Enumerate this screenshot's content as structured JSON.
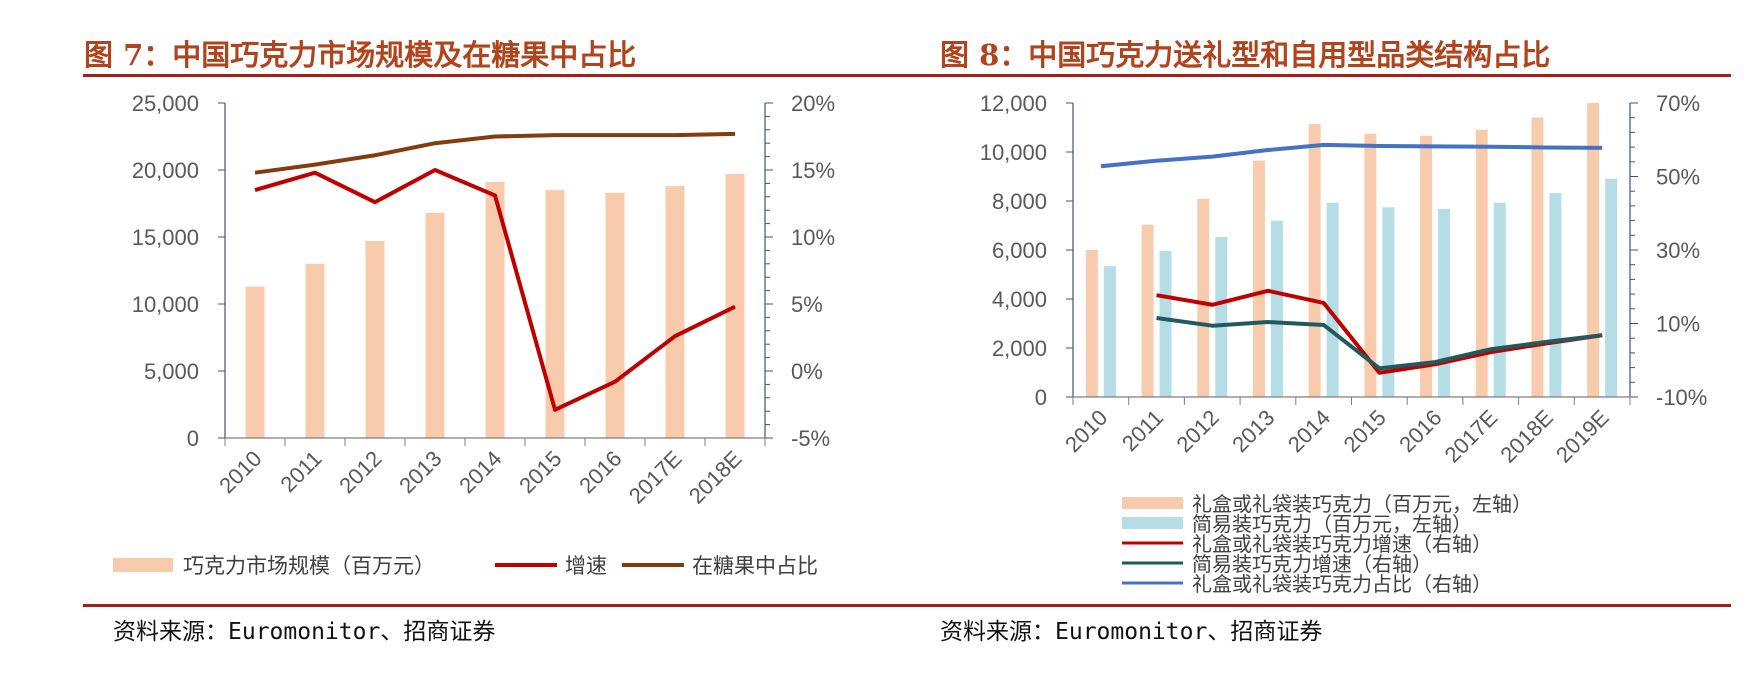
{
  "figures": [
    {
      "title": "图 7：中国巧克力市场规模及在糖果中占比",
      "source": "资料来源：Euromonitor、招商证券"
    },
    {
      "title": "图 8：中国巧克力送礼型和自用型品类结构占比",
      "source": "资料来源：Euromonitor、招商证券"
    }
  ],
  "colors": {
    "title": "#B0441C",
    "rule": "#A0201C",
    "bar_gift": "#F8CBAD",
    "bar_simple": "#B4DDE6",
    "red": "#C00000",
    "brown": "#843C0C",
    "teal": "#215A5E",
    "blue": "#4472C4"
  },
  "chart_data": [
    {
      "type": "bar",
      "categories": [
        "2010",
        "2011",
        "2012",
        "2013",
        "2014",
        "2015",
        "2016",
        "2017E",
        "2018E"
      ],
      "ylim": [
        0,
        25000
      ],
      "y_ticks": [
        "0",
        "5,000",
        "10,000",
        "15,000",
        "20,000",
        "25,000"
      ],
      "y2lim": [
        -5,
        20
      ],
      "y2_ticks": [
        "-5%",
        "0%",
        "5%",
        "10%",
        "15%",
        "20%"
      ],
      "legend_position": "bottom",
      "series": [
        {
          "name": "巧克力市场规模（百万元）",
          "type": "bar",
          "axis": "left",
          "color": "#F8CBAD",
          "values": [
            11300,
            13000,
            14700,
            16800,
            19100,
            18500,
            18300,
            18800,
            19700
          ]
        },
        {
          "name": "增速",
          "type": "line",
          "axis": "right",
          "color": "#C00000",
          "values": [
            13.5,
            14.8,
            12.6,
            15.0,
            13.1,
            -2.9,
            -0.8,
            2.6,
            4.8
          ]
        },
        {
          "name": "在糖果中占比",
          "type": "line",
          "axis": "right",
          "color": "#843C0C",
          "values": [
            14.8,
            15.4,
            16.1,
            17.0,
            17.5,
            17.6,
            17.6,
            17.6,
            17.7
          ]
        }
      ]
    },
    {
      "type": "bar",
      "categories": [
        "2010",
        "2011",
        "2012",
        "2013",
        "2014",
        "2015",
        "2016",
        "2017E",
        "2018E",
        "2019E"
      ],
      "ylim": [
        0,
        12000
      ],
      "y_ticks": [
        "0",
        "2,000",
        "4,000",
        "6,000",
        "8,000",
        "10,000",
        "12,000"
      ],
      "y2lim": [
        -10,
        70
      ],
      "y2_ticks": [
        "-10%",
        "10%",
        "30%",
        "50%",
        "70%"
      ],
      "legend_position": "bottom",
      "series": [
        {
          "name": "礼盒或礼袋装巧克力（百万元，左轴）",
          "type": "bar",
          "axis": "left",
          "color": "#F8CBAD",
          "values": [
            6000,
            7030,
            8090,
            9650,
            11140,
            10750,
            10660,
            10910,
            11410,
            12000
          ]
        },
        {
          "name": "简易装巧克力（百万元，左轴）",
          "type": "bar",
          "axis": "left",
          "color": "#B4DDE6",
          "values": [
            5340,
            5960,
            6530,
            7200,
            7930,
            7740,
            7680,
            7930,
            8320,
            8910
          ]
        },
        {
          "name": "礼盒或礼袋装巧克力增速（右轴）",
          "type": "line",
          "axis": "right",
          "color": "#C00000",
          "values": [
            null,
            17.7,
            15.1,
            18.9,
            15.6,
            -3.4,
            -1.1,
            2.2,
            4.6,
            6.8
          ]
        },
        {
          "name": "简易装巧克力增速（右轴）",
          "type": "line",
          "axis": "right",
          "color": "#215A5E",
          "values": [
            null,
            11.5,
            9.4,
            10.4,
            9.6,
            -2.2,
            -0.5,
            3.0,
            5.0,
            6.8
          ]
        },
        {
          "name": "礼盒或礼袋装巧克力占比（右轴）",
          "type": "line",
          "axis": "right",
          "color": "#4472C4",
          "values": [
            52.8,
            54.3,
            55.4,
            57.2,
            58.6,
            58.3,
            58.2,
            58.1,
            57.9,
            57.8
          ]
        }
      ]
    }
  ]
}
